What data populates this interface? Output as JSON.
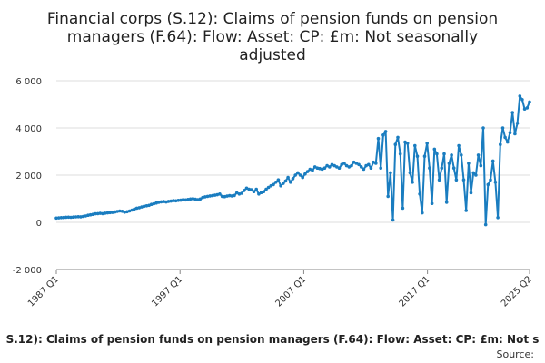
{
  "chart_data": {
    "type": "line",
    "title_lines": [
      "Financial corps (S.12): Claims of pension funds on pension",
      "managers (F.64): Flow: Asset: CP: £m: Not seasonally",
      "adjusted"
    ],
    "xlabel": "",
    "ylabel": "",
    "x_ticks": [
      "1987 Q1",
      "1997 Q1",
      "2007 Q1",
      "2017 Q1",
      "2025 Q2"
    ],
    "y_ticks": [
      "-2 000",
      "0",
      "2 000",
      "4 000",
      "6 000"
    ],
    "ylim": [
      -2000,
      6000
    ],
    "x_range_quarters": [
      "1987 Q1",
      "2025 Q2"
    ],
    "grid": "horizontal",
    "legend_text": "S.12): Claims of pension funds on pension managers (F.64): Flow: Asset: CP: £m: Not s",
    "source_text": "Source:",
    "series": [
      {
        "color": "#1a7dc0",
        "values": [
          180,
          190,
          200,
          205,
          215,
          220,
          210,
          225,
          230,
          240,
          235,
          250,
          270,
          300,
          320,
          340,
          360,
          370,
          380,
          370,
          390,
          400,
          410,
          420,
          440,
          460,
          480,
          470,
          430,
          450,
          480,
          520,
          560,
          600,
          620,
          650,
          680,
          700,
          720,
          760,
          790,
          820,
          850,
          870,
          880,
          860,
          890,
          900,
          920,
          910,
          930,
          940,
          960,
          950,
          970,
          990,
          1000,
          980,
          960,
          990,
          1050,
          1080,
          1100,
          1120,
          1130,
          1150,
          1170,
          1200,
          1100,
          1090,
          1110,
          1130,
          1120,
          1140,
          1250,
          1200,
          1230,
          1350,
          1450,
          1400,
          1380,
          1300,
          1400,
          1200,
          1260,
          1300,
          1400,
          1480,
          1550,
          1600,
          1700,
          1800,
          1550,
          1650,
          1750,
          1900,
          1700,
          1850,
          2000,
          2100,
          2000,
          1900,
          2050,
          2150,
          2250,
          2200,
          2350,
          2300,
          2280,
          2250,
          2300,
          2400,
          2350,
          2450,
          2400,
          2350,
          2300,
          2450,
          2500,
          2400,
          2350,
          2400,
          2550,
          2500,
          2450,
          2350,
          2250,
          2400,
          2450,
          2300,
          2550,
          2500,
          3550,
          2300,
          3700,
          3850,
          1100,
          2100,
          100,
          3300,
          3600,
          2900,
          600,
          3400,
          3350,
          2100,
          1700,
          3250,
          2800,
          1200,
          400,
          2800,
          3350,
          2300,
          800,
          3100,
          2900,
          1800,
          2300,
          2900,
          850,
          2500,
          2850,
          2300,
          1800,
          3250,
          2850,
          1800,
          500,
          2500,
          1250,
          2100,
          2000,
          2850,
          2400,
          4000,
          -100,
          1600,
          1800,
          2600,
          1700,
          200,
          3300,
          4000,
          3600,
          3400,
          3800,
          4650,
          3750,
          4200,
          5350,
          5200,
          4800,
          4850,
          5100
        ]
      }
    ]
  }
}
